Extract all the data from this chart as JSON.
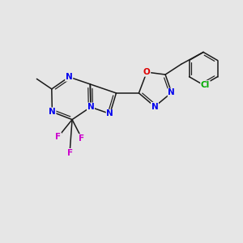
{
  "background_color": "#e6e6e6",
  "bond_color": "#1a1a1a",
  "atom_colors": {
    "N": "#0000ee",
    "O": "#dd0000",
    "F": "#cc00cc",
    "Cl": "#00aa00",
    "C": "#1a1a1a"
  },
  "font_size": 7.5,
  "lw": 1.1,
  "lw2": 0.85,
  "figsize": [
    3.0,
    3.0
  ],
  "dpi": 100
}
